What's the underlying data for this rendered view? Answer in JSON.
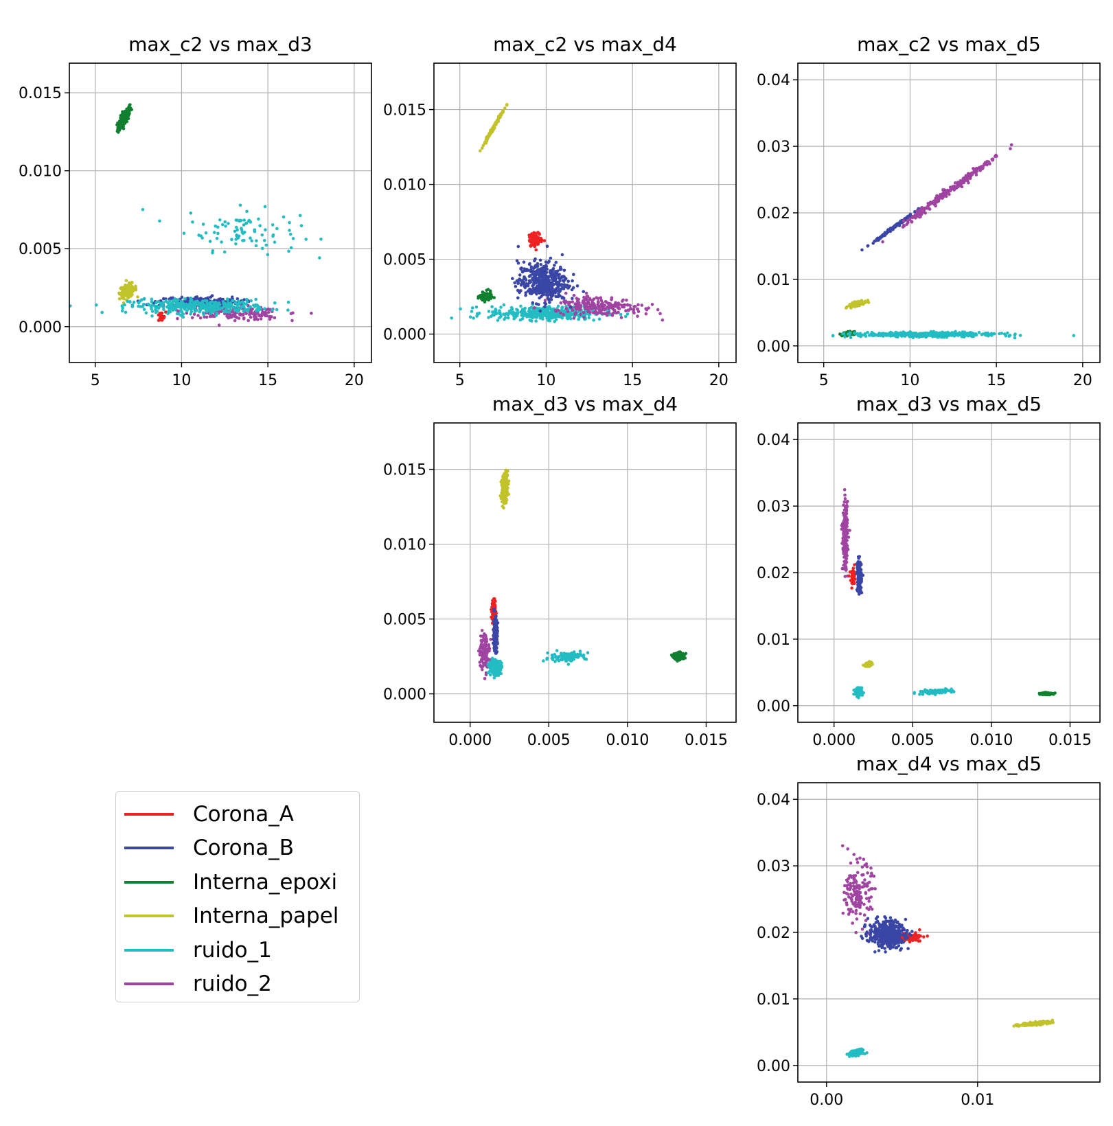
{
  "chart_data": [
    {
      "type": "scatter",
      "title": "max_c2 vs max_d3",
      "xlim": [
        3.5,
        21
      ],
      "ylim": [
        -0.0023,
        0.0169
      ],
      "xticks": [
        5,
        10,
        15,
        20
      ],
      "xtick_labels": [
        "5",
        "10",
        "15",
        "20"
      ],
      "yticks": [
        0.0,
        0.005,
        0.01,
        0.015
      ],
      "ytick_labels": [
        "0.000",
        "0.005",
        "0.010",
        "0.015"
      ],
      "grid": true,
      "clusters": [
        {
          "series": "Interna_epoxi",
          "center": [
            6.7,
            0.0134
          ],
          "spread": [
            0.35,
            0.0007
          ],
          "count": 160,
          "corr": 0.8
        },
        {
          "series": "ruido_1",
          "center": [
            13.5,
            0.0062
          ],
          "spread": [
            3.0,
            0.0013
          ],
          "count": 90,
          "corr": -0.2
        },
        {
          "series": "Interna_papel",
          "center": [
            6.9,
            0.0023
          ],
          "spread": [
            0.45,
            0.0004
          ],
          "count": 120,
          "corr": 0.3
        },
        {
          "series": "ruido_2",
          "center": [
            13.0,
            0.0009
          ],
          "spread": [
            2.6,
            0.0004
          ],
          "count": 200,
          "corr": -0.3
        },
        {
          "series": "Corona_A",
          "center": [
            8.8,
            0.0006
          ],
          "spread": [
            0.25,
            0.0003
          ],
          "count": 20,
          "corr": 0
        },
        {
          "series": "Corona_B",
          "center": [
            11.0,
            0.0016
          ],
          "spread": [
            2.2,
            0.0003
          ],
          "count": 200,
          "corr": 0
        },
        {
          "series": "ruido_1",
          "center": [
            11.0,
            0.0013
          ],
          "spread": [
            3.6,
            0.0004
          ],
          "count": 340,
          "corr": 0
        }
      ]
    },
    {
      "type": "scatter",
      "title": "max_c2 vs max_d4",
      "xlim": [
        3.5,
        21
      ],
      "ylim": [
        -0.0019,
        0.0181
      ],
      "xticks": [
        5,
        10,
        15,
        20
      ],
      "xtick_labels": [
        "5",
        "10",
        "15",
        "20"
      ],
      "yticks": [
        0.0,
        0.005,
        0.01,
        0.015
      ],
      "ytick_labels": [
        "0.000",
        "0.005",
        "0.010",
        "0.015"
      ],
      "grid": true,
      "clusters": [
        {
          "series": "Interna_papel",
          "center": [
            6.9,
            0.0137
          ],
          "spread": [
            0.55,
            0.0011
          ],
          "count": 140,
          "corr": 0.995
        },
        {
          "series": "Interna_epoxi",
          "center": [
            6.5,
            0.0025
          ],
          "spread": [
            0.3,
            0.0003
          ],
          "count": 100,
          "corr": 0
        },
        {
          "series": "ruido_1",
          "center": [
            10.0,
            0.0014
          ],
          "spread": [
            3.0,
            0.0004
          ],
          "count": 400,
          "corr": 0
        },
        {
          "series": "ruido_2",
          "center": [
            13.0,
            0.0019
          ],
          "spread": [
            2.4,
            0.0006
          ],
          "count": 220,
          "corr": -0.3
        },
        {
          "series": "Corona_B",
          "center": [
            9.8,
            0.0035
          ],
          "spread": [
            1.3,
            0.0012
          ],
          "count": 420,
          "corr": 0
        },
        {
          "series": "Corona_A",
          "center": [
            9.4,
            0.0063
          ],
          "spread": [
            0.35,
            0.0004
          ],
          "count": 100,
          "corr": 0
        }
      ]
    },
    {
      "type": "scatter",
      "title": "max_c2 vs max_d5",
      "xlim": [
        3.5,
        21
      ],
      "ylim": [
        -0.0025,
        0.0425
      ],
      "xticks": [
        5,
        10,
        15,
        20
      ],
      "xtick_labels": [
        "5",
        "10",
        "15",
        "20"
      ],
      "yticks": [
        0.0,
        0.01,
        0.02,
        0.03,
        0.04
      ],
      "ytick_labels": [
        "0.00",
        "0.01",
        "0.02",
        "0.03",
        "0.04"
      ],
      "grid": true,
      "clusters": [
        {
          "series": "Corona_B",
          "center": [
            9.0,
            0.0177
          ],
          "spread": [
            1.1,
            0.0021
          ],
          "count": 150,
          "corr": 0.995
        },
        {
          "series": "ruido_2",
          "center": [
            12.5,
            0.0237
          ],
          "spread": [
            2.6,
            0.005
          ],
          "count": 260,
          "corr": 0.995
        },
        {
          "series": "Interna_papel",
          "center": [
            6.9,
            0.0063
          ],
          "spread": [
            0.4,
            0.0004
          ],
          "count": 140,
          "corr": 0.7
        },
        {
          "series": "Interna_epoxi",
          "center": [
            6.4,
            0.0018
          ],
          "spread": [
            0.3,
            0.0003
          ],
          "count": 40,
          "corr": 0
        },
        {
          "series": "ruido_1",
          "center": [
            11.0,
            0.0017
          ],
          "spread": [
            3.6,
            0.0003
          ],
          "count": 480,
          "corr": 0
        }
      ]
    },
    {
      "type": "scatter",
      "title": "max_d3 vs max_d4",
      "xlim": [
        -0.0023,
        0.0169
      ],
      "ylim": [
        -0.0019,
        0.0181
      ],
      "xticks": [
        0.0,
        0.005,
        0.01,
        0.015
      ],
      "xtick_labels": [
        "0.000",
        "0.005",
        "0.010",
        "0.015"
      ],
      "yticks": [
        0.0,
        0.005,
        0.01,
        0.015
      ],
      "ytick_labels": [
        "0.000",
        "0.005",
        "0.010",
        "0.015"
      ],
      "grid": true,
      "clusters": [
        {
          "series": "Interna_papel",
          "center": [
            0.0022,
            0.0138
          ],
          "spread": [
            0.0002,
            0.0009
          ],
          "count": 180,
          "corr": 0.2
        },
        {
          "series": "ruido_2",
          "center": [
            0.0009,
            0.0028
          ],
          "spread": [
            0.0003,
            0.0011
          ],
          "count": 120,
          "corr": 0
        },
        {
          "series": "Corona_A",
          "center": [
            0.0015,
            0.0055
          ],
          "spread": [
            0.00012,
            0.0008
          ],
          "count": 90,
          "corr": 0
        },
        {
          "series": "Corona_B",
          "center": [
            0.0016,
            0.004
          ],
          "spread": [
            0.00012,
            0.001
          ],
          "count": 180,
          "corr": 0
        },
        {
          "series": "ruido_1",
          "center": [
            0.0016,
            0.0018
          ],
          "spread": [
            0.00035,
            0.0004
          ],
          "count": 200,
          "corr": 0
        },
        {
          "series": "ruido_1",
          "center": [
            0.0062,
            0.0025
          ],
          "spread": [
            0.0011,
            0.0003
          ],
          "count": 90,
          "corr": 0.3
        },
        {
          "series": "Interna_epoxi",
          "center": [
            0.0133,
            0.0025
          ],
          "spread": [
            0.0003,
            0.0002
          ],
          "count": 160,
          "corr": 0
        }
      ]
    },
    {
      "type": "scatter",
      "title": "max_d3 vs max_d5",
      "xlim": [
        -0.0023,
        0.0169
      ],
      "ylim": [
        -0.0025,
        0.0425
      ],
      "xticks": [
        0.0,
        0.005,
        0.01,
        0.015
      ],
      "xtick_labels": [
        "0.000",
        "0.005",
        "0.010",
        "0.015"
      ],
      "yticks": [
        0.0,
        0.01,
        0.02,
        0.03,
        0.04
      ],
      "ytick_labels": [
        "0.00",
        "0.01",
        "0.02",
        "0.03",
        "0.04"
      ],
      "grid": true,
      "clusters": [
        {
          "series": "ruido_2",
          "center": [
            0.0007,
            0.0255
          ],
          "spread": [
            0.00015,
            0.0045
          ],
          "count": 200,
          "corr": 0
        },
        {
          "series": "Corona_A",
          "center": [
            0.0012,
            0.019
          ],
          "spread": [
            0.00015,
            0.0012
          ],
          "count": 40,
          "corr": 0
        },
        {
          "series": "Corona_B",
          "center": [
            0.0016,
            0.0195
          ],
          "spread": [
            0.00012,
            0.0022
          ],
          "count": 220,
          "corr": 0
        },
        {
          "series": "Interna_papel",
          "center": [
            0.0022,
            0.0062
          ],
          "spread": [
            0.0002,
            0.0003
          ],
          "count": 100,
          "corr": 0.3
        },
        {
          "series": "ruido_1",
          "center": [
            0.0016,
            0.002
          ],
          "spread": [
            0.0002,
            0.0005
          ],
          "count": 140,
          "corr": 0
        },
        {
          "series": "ruido_1",
          "center": [
            0.0064,
            0.0021
          ],
          "spread": [
            0.001,
            0.0003
          ],
          "count": 100,
          "corr": 0.4
        },
        {
          "series": "Interna_epoxi",
          "center": [
            0.0135,
            0.0018
          ],
          "spread": [
            0.0003,
            0.00015
          ],
          "count": 160,
          "corr": 0
        }
      ]
    },
    {
      "type": "scatter",
      "title": "max_d4 vs max_d5",
      "xlim": [
        -0.0019,
        0.0181
      ],
      "ylim": [
        -0.0025,
        0.0425
      ],
      "xticks": [
        0.0,
        0.01
      ],
      "xtick_labels": [
        "0.00",
        "0.01"
      ],
      "yticks": [
        0.0,
        0.01,
        0.02,
        0.03,
        0.04
      ],
      "ytick_labels": [
        "0.00",
        "0.01",
        "0.02",
        "0.03",
        "0.04"
      ],
      "grid": true,
      "clusters": [
        {
          "series": "ruido_2",
          "center": [
            0.0021,
            0.026
          ],
          "spread": [
            0.0008,
            0.004
          ],
          "count": 160,
          "corr": 0
        },
        {
          "series": "Corona_A",
          "center": [
            0.005,
            0.0192
          ],
          "spread": [
            0.0011,
            0.0005
          ],
          "count": 200,
          "corr": 0
        },
        {
          "series": "Corona_B",
          "center": [
            0.004,
            0.0198
          ],
          "spread": [
            0.0011,
            0.0018
          ],
          "count": 380,
          "corr": 0
        },
        {
          "series": "Interna_papel",
          "center": [
            0.0139,
            0.0063
          ],
          "spread": [
            0.001,
            0.0003
          ],
          "count": 160,
          "corr": 0.7
        },
        {
          "series": "ruido_1",
          "center": [
            0.002,
            0.0019
          ],
          "spread": [
            0.0004,
            0.0004
          ],
          "count": 200,
          "corr": 0.4
        }
      ]
    }
  ],
  "legend": {
    "placement": "lower-left",
    "entries": [
      {
        "name": "Corona_A",
        "color": "#ee2222"
      },
      {
        "name": "Corona_B",
        "color": "#3a46a6"
      },
      {
        "name": "Interna_epoxi",
        "color": "#108030"
      },
      {
        "name": "Interna_papel",
        "color": "#c2c22a"
      },
      {
        "name": "ruido_1",
        "color": "#22bcc2"
      },
      {
        "name": "ruido_2",
        "color": "#a044a2"
      }
    ]
  }
}
